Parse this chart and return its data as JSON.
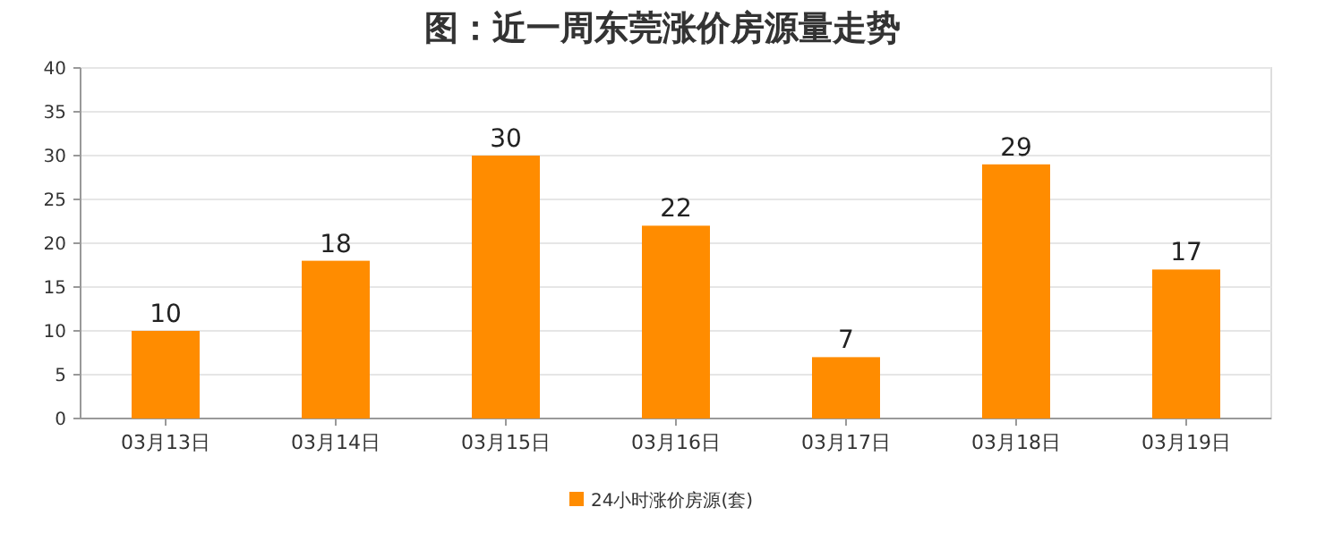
{
  "chart_data": {
    "type": "bar",
    "title": "图：近一周东莞涨价房源量走势",
    "categories": [
      "03月13日",
      "03月14日",
      "03月15日",
      "03月16日",
      "03月17日",
      "03月18日",
      "03月19日"
    ],
    "series": [
      {
        "name": "24小时涨价房源(套)",
        "color": "#ff8c00",
        "values": [
          10,
          18,
          30,
          22,
          7,
          29,
          17
        ]
      }
    ],
    "ylim": [
      0,
      40
    ],
    "yticks": [
      0,
      5,
      10,
      15,
      20,
      25,
      30,
      35,
      40
    ],
    "grid": "y",
    "legend": "bottom",
    "data_labels": true
  }
}
